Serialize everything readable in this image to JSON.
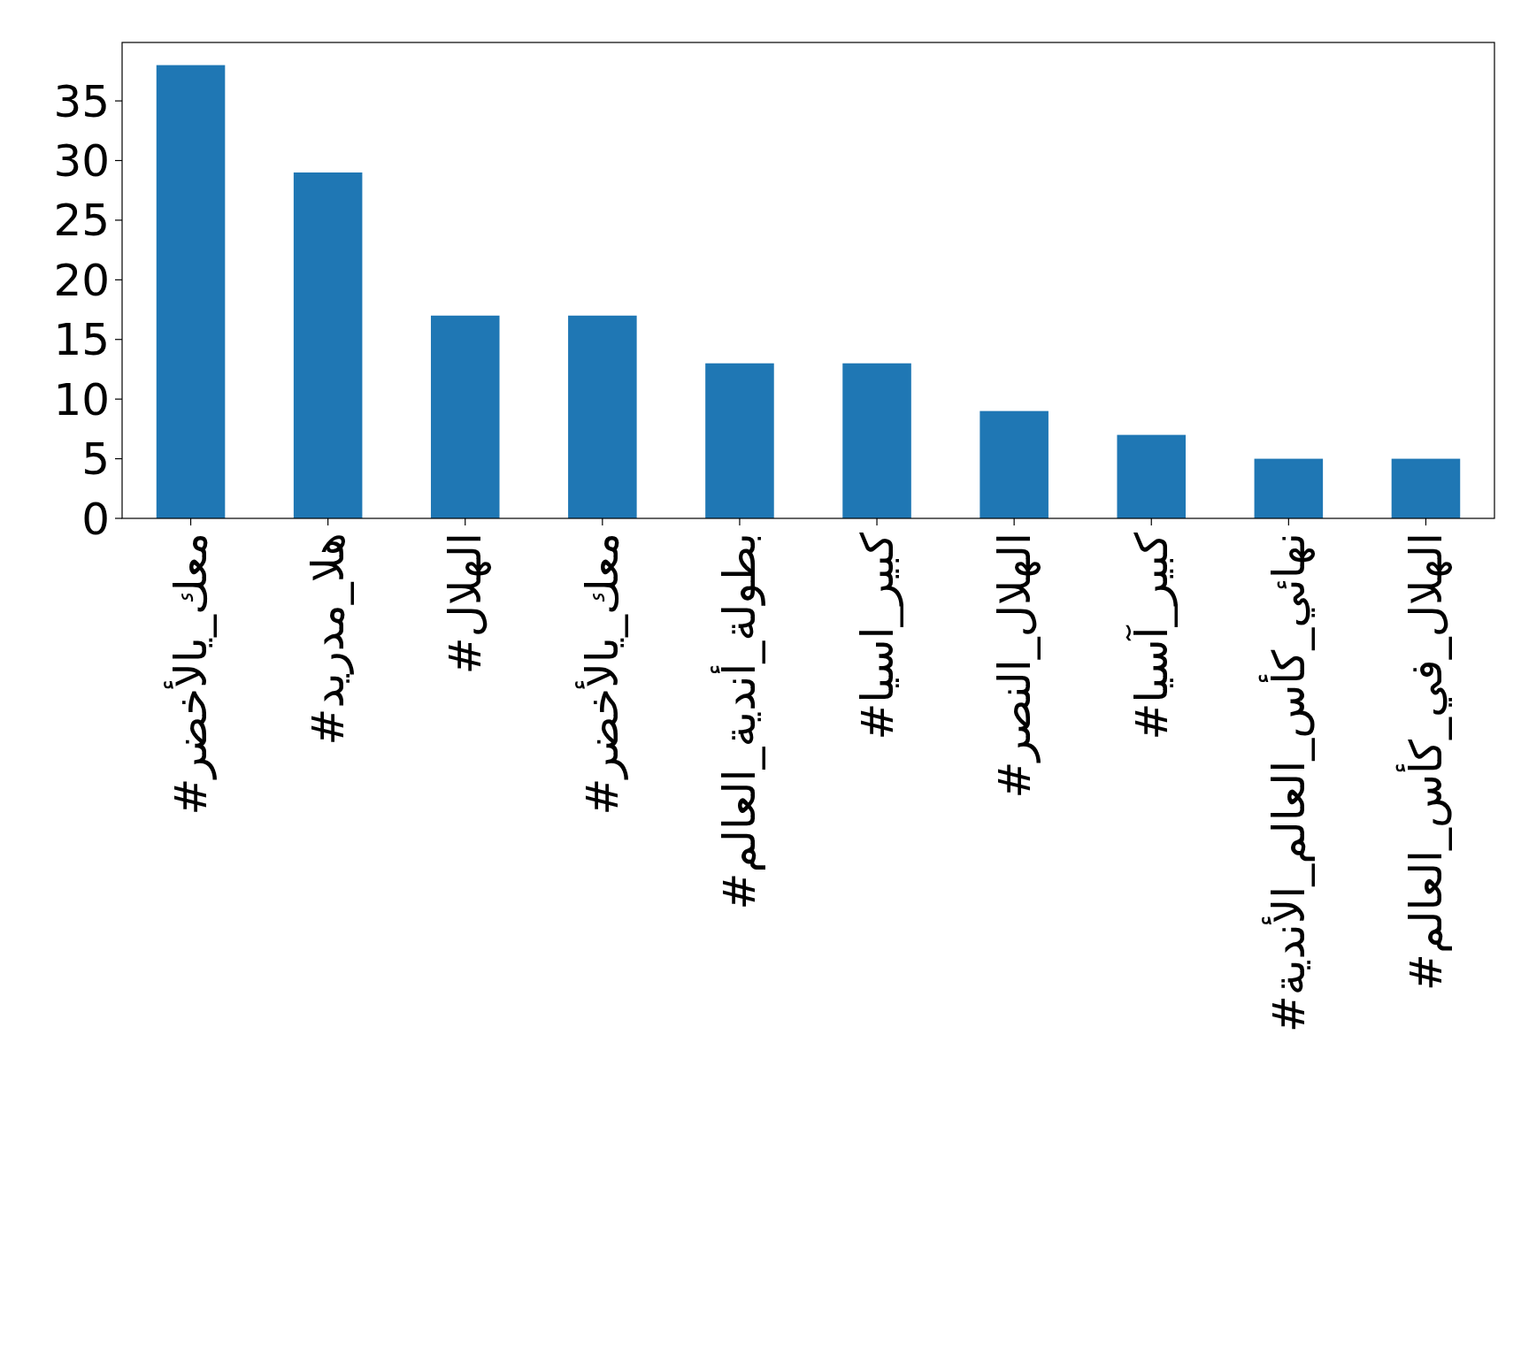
{
  "chart_data": {
    "type": "bar",
    "categories": [
      "#معك_يالأخضر",
      "#هلا_مدريد",
      "#الهلال",
      "#معك_يالأخضر",
      "#بطولة_أندية_العالم",
      "#كبير_اسيا",
      "#الهلال_النصر",
      "#كبير_آسيا",
      "#نهائي_كأس_العالم_الأندية",
      "#الهلال_في_كأس_العالم"
    ],
    "values": [
      38,
      29,
      17,
      17,
      13,
      13,
      9,
      7,
      5,
      5
    ],
    "color": "#1f77b4",
    "ylim": [
      0,
      39.9
    ],
    "yticks": [
      0,
      5,
      10,
      15,
      20,
      25,
      30,
      35
    ],
    "grid": false
  }
}
